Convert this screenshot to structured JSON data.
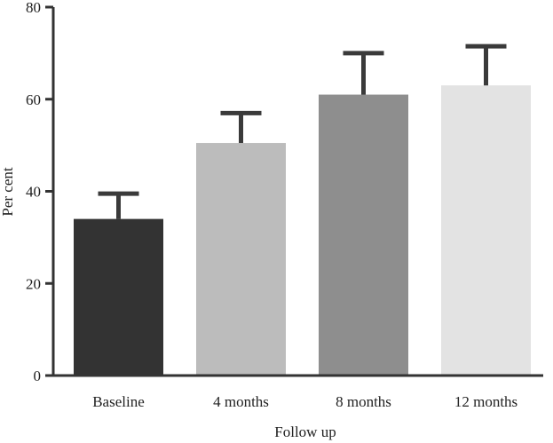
{
  "chart_data": {
    "type": "bar",
    "title": "",
    "xlabel": "Follow up",
    "ylabel": "Per cent",
    "categories": [
      "Baseline",
      "4 months",
      "8 months",
      "12 months"
    ],
    "values": [
      34,
      50.5,
      61,
      63
    ],
    "error_upper": [
      39.5,
      57,
      70,
      71.5
    ],
    "ylim": [
      0,
      80
    ],
    "yticks": [
      "0",
      "20",
      "40",
      "60",
      "80"
    ],
    "bar_colors": [
      "#333333",
      "#bcbcbc",
      "#8e8e8e",
      "#e3e3e3"
    ],
    "axis_color": "#333333",
    "errorbar_color": "#3a3a3a",
    "grid": false,
    "legend": "none"
  }
}
